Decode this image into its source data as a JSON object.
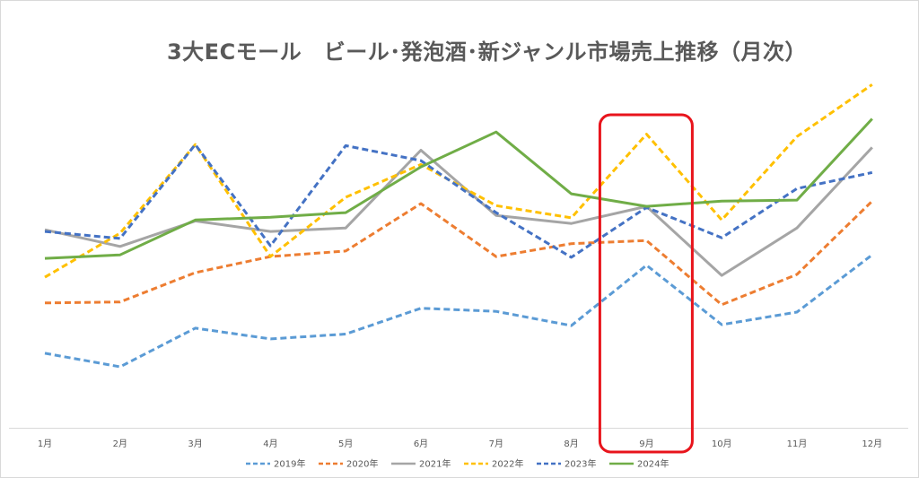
{
  "chart_data": {
    "type": "line",
    "title": "3大ECモール　ビール･発泡酒･新ジャンル市場売上推移（月次）",
    "xlabel": "",
    "ylabel": "",
    "categories": [
      "1月",
      "2月",
      "3月",
      "4月",
      "5月",
      "6月",
      "7月",
      "8月",
      "9月",
      "10月",
      "11月",
      "12月"
    ],
    "ylim": [
      0,
      100
    ],
    "y_axis_labels": "none",
    "grid": false,
    "legend": "bottom",
    "highlight": {
      "category": "9月",
      "color": "#e8141c",
      "shape": "rounded-rectangle"
    },
    "series": [
      {
        "name": "2019年",
        "color": "#5b9bd5",
        "dash": "dashed",
        "values": [
          21.5,
          17.6,
          28.7,
          25.6,
          27.0,
          34.4,
          33.5,
          29.4,
          46.7,
          29.7,
          33.3,
          49.7
        ]
      },
      {
        "name": "2020年",
        "color": "#ed7d31",
        "dash": "dashed",
        "values": [
          35.9,
          36.2,
          44.6,
          49.2,
          50.8,
          64.4,
          49.2,
          52.9,
          53.8,
          35.4,
          44.1,
          65.1
        ]
      },
      {
        "name": "2021年",
        "color": "#a5a5a5",
        "dash": "solid",
        "values": [
          56.9,
          52.1,
          59.4,
          56.4,
          57.4,
          79.7,
          61.0,
          58.7,
          63.6,
          43.8,
          57.4,
          80.5
        ]
      },
      {
        "name": "2022年",
        "color": "#ffc000",
        "dash": "dashed",
        "values": [
          43.3,
          55.9,
          81.3,
          49.2,
          66.2,
          75.6,
          63.8,
          60.3,
          84.3,
          59.7,
          83.6,
          98.5
        ]
      },
      {
        "name": "2023年",
        "color": "#4472c4",
        "dash": "dashed",
        "values": [
          56.4,
          54.4,
          81.3,
          52.3,
          81.0,
          76.7,
          61.8,
          49.0,
          63.3,
          54.6,
          68.7,
          73.3
        ]
      },
      {
        "name": "2024年",
        "color": "#70ad47",
        "dash": "solid",
        "values": [
          48.7,
          49.7,
          59.7,
          60.5,
          61.8,
          74.9,
          84.9,
          67.2,
          63.6,
          65.1,
          65.4,
          88.7
        ]
      }
    ]
  }
}
